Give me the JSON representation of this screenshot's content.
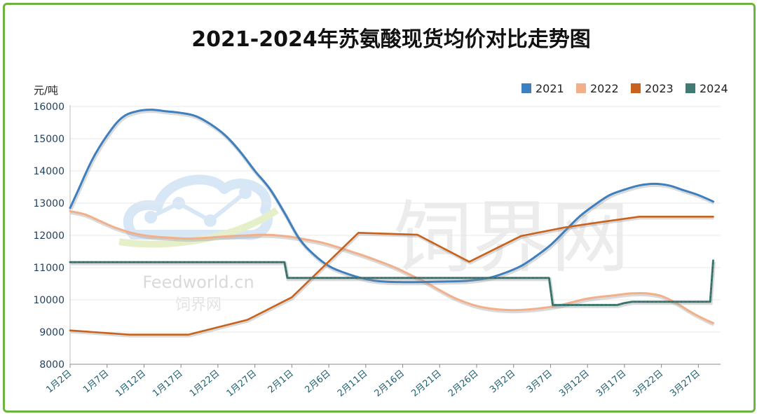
{
  "colors": {
    "2021": "#3e7fbf",
    "2022": "#f2b08a",
    "2023": "#c8621c",
    "2024": "#3f7a74",
    "frame": "#6db33f",
    "grid": "#e8e8e8"
  },
  "watermark": {
    "text_big": "饲界网",
    "text_en": "Feedworld.cn",
    "text_small": "饲界网"
  },
  "chart_data": {
    "type": "line",
    "title": "2021-2024年苏氨酸现货均价对比走势图",
    "ylabel": "元/吨",
    "xlabel": "",
    "ylim": [
      8000,
      16000
    ],
    "yticks": [
      8000,
      9000,
      10000,
      11000,
      12000,
      13000,
      14000,
      15000,
      16000
    ],
    "x_tick_labels": [
      "1月2日",
      "1月7日",
      "1月12日",
      "1月17日",
      "1月22日",
      "1月27日",
      "2月1日",
      "2月6日",
      "2月11日",
      "2月16日",
      "2月21日",
      "2月26日",
      "3月2日",
      "3月7日",
      "3月12日",
      "3月17日",
      "3月22日",
      "3月27日"
    ],
    "x_tick_positions": [
      0,
      5,
      10,
      15,
      20,
      25,
      30,
      35,
      40,
      45,
      50,
      55,
      60,
      65,
      70,
      75,
      80,
      85
    ],
    "xlim": [
      0,
      88
    ],
    "grid": true,
    "legend_position": "top-right",
    "series": [
      {
        "name": "2021",
        "x": [
          0,
          1,
          3,
          5,
          7,
          9,
          11,
          13,
          15,
          17,
          19,
          21,
          23,
          25,
          27,
          29,
          31,
          33,
          35,
          37,
          39,
          41,
          43,
          45,
          47,
          49,
          51,
          53,
          55,
          57,
          59,
          61,
          63,
          65,
          67,
          69,
          71,
          73,
          75,
          77,
          79,
          81,
          83,
          85,
          87
        ],
        "values": [
          12850,
          13350,
          14350,
          15100,
          15650,
          15850,
          15900,
          15850,
          15800,
          15700,
          15450,
          15100,
          14600,
          14000,
          13450,
          12700,
          11900,
          11400,
          11050,
          10850,
          10700,
          10600,
          10560,
          10550,
          10550,
          10560,
          10570,
          10580,
          10620,
          10700,
          10850,
          11050,
          11350,
          11700,
          12150,
          12600,
          12950,
          13250,
          13420,
          13550,
          13600,
          13550,
          13400,
          13250,
          13050
        ]
      },
      {
        "name": "2022",
        "x": [
          0,
          2,
          4,
          6,
          8,
          10,
          12,
          14,
          16,
          18,
          20,
          22,
          24,
          26,
          28,
          30,
          32,
          34,
          36,
          38,
          40,
          42,
          44,
          46,
          48,
          50,
          52,
          54,
          56,
          58,
          60,
          62,
          64,
          66,
          68,
          70,
          72,
          74,
          76,
          78,
          80,
          82,
          84,
          86,
          87
        ],
        "values": [
          12750,
          12650,
          12450,
          12250,
          12100,
          12000,
          11950,
          11920,
          11900,
          11920,
          11950,
          11980,
          12000,
          12020,
          12000,
          11950,
          11870,
          11780,
          11650,
          11500,
          11350,
          11180,
          11000,
          10780,
          10560,
          10300,
          10060,
          9880,
          9760,
          9700,
          9680,
          9700,
          9750,
          9820,
          9930,
          10040,
          10100,
          10150,
          10200,
          10200,
          10120,
          9900,
          9620,
          9380,
          9280
        ]
      },
      {
        "name": "2023",
        "x": [
          0,
          8,
          16,
          24,
          30,
          39,
          47,
          54,
          61,
          67,
          72,
          77,
          80,
          84,
          87
        ],
        "values": [
          9050,
          8920,
          8920,
          9380,
          10080,
          12080,
          12020,
          11180,
          11980,
          12250,
          12420,
          12580,
          12580,
          12580,
          12580
        ]
      },
      {
        "name": "2024",
        "x": [
          0,
          28,
          29,
          29.4,
          35,
          45,
          55,
          64,
          64.8,
          65.3,
          70,
          74,
          75,
          76,
          85,
          86.6,
          87
        ],
        "values": [
          11170,
          11170,
          11170,
          10680,
          10680,
          10680,
          10680,
          10680,
          10680,
          9840,
          9840,
          9840,
          9900,
          9940,
          9940,
          9940,
          11220
        ]
      }
    ]
  }
}
